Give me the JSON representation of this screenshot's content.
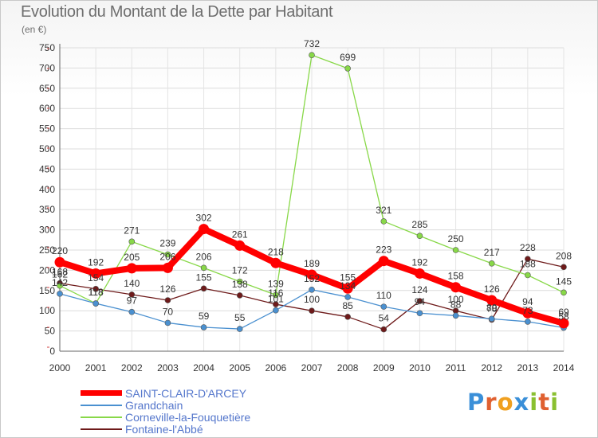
{
  "chart_data": {
    "type": "line",
    "title": "Evolution du Montant de la Dette par Habitant",
    "subtitle": "(en €)",
    "x": [
      "2000",
      "2001",
      "2002",
      "2003",
      "2004",
      "2005",
      "2006",
      "2007",
      "2008",
      "2009",
      "2010",
      "2011",
      "2012",
      "2013",
      "2014"
    ],
    "ylim": [
      0,
      750
    ],
    "yticks": [
      0,
      50,
      100,
      150,
      200,
      250,
      300,
      350,
      400,
      450,
      500,
      550,
      600,
      650,
      700,
      750
    ],
    "grid": true,
    "legend_position": "bottom-left",
    "series": [
      {
        "name": "SAINT-CLAIR-D'ARCEY",
        "color": "#ff0000",
        "values": [
          220,
          192,
          205,
          206,
          302,
          261,
          218,
          189,
          155,
          223,
          192,
          158,
          126,
          94,
          69
        ],
        "labels": [
          "220",
          "192",
          "205",
          "206",
          "302",
          "261",
          "218",
          "189",
          "155",
          "223",
          "192",
          "158",
          "126",
          "94",
          "69"
        ]
      },
      {
        "name": "Grandchain",
        "color": "#4a90d0",
        "values": [
          142,
          118,
          97,
          70,
          59,
          55,
          101,
          152,
          134,
          110,
          94,
          88,
          80,
          73,
          58
        ],
        "labels": [
          "142",
          "118",
          "97",
          "70",
          "59",
          "55",
          "101",
          "152",
          "134",
          "110",
          "94",
          "88",
          "80",
          "73",
          "58"
        ]
      },
      {
        "name": "Corneville-la-Fouquetière",
        "color": "#88d848",
        "values": [
          162,
          118,
          271,
          239,
          206,
          172,
          139,
          732,
          699,
          321,
          285,
          250,
          217,
          188,
          145
        ],
        "labels": [
          "162",
          "118",
          "271",
          "239",
          "206",
          "172",
          "139",
          "732",
          "699",
          "321",
          "285",
          "250",
          "217",
          "188",
          "145"
        ]
      },
      {
        "name": "Fontaine-l'Abbé",
        "color": "#6e1a1a",
        "values": [
          168,
          154,
          140,
          126,
          155,
          138,
          116,
          100,
          85,
          54,
          124,
          100,
          78,
          228,
          208
        ],
        "labels": [
          "168",
          "154",
          "140",
          "126",
          "155",
          "138",
          "116",
          "100",
          "85",
          "54",
          "124",
          "100",
          "78",
          "228",
          "208"
        ]
      }
    ]
  },
  "logo": {
    "letters": [
      "P",
      "r",
      "o",
      "x",
      "i",
      "t",
      "i"
    ],
    "colors": [
      "#3a8fd8",
      "#e06030",
      "#f0a020",
      "#3a8fd8",
      "#8ac030",
      "#e06030",
      "#8ac030"
    ]
  }
}
